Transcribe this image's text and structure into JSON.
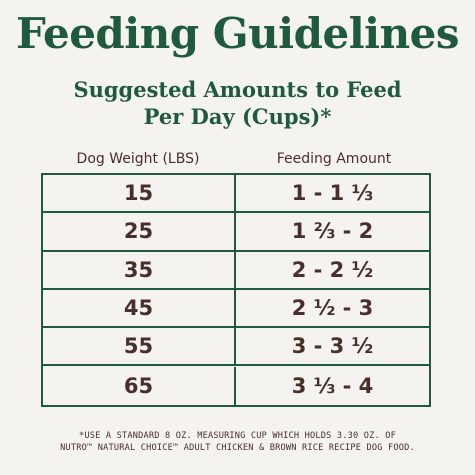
{
  "title": "Feeding Guidelines",
  "subtitle_line1": "Suggested Amounts to Feed",
  "subtitle_line2": "Per Day (Cups)*",
  "columns": {
    "weight": "Dog Weight (LBS)",
    "amount": "Feeding Amount"
  },
  "rows": [
    {
      "weight": "15",
      "amount": "1 - 1 ⅓"
    },
    {
      "weight": "25",
      "amount": "1 ⅔ - 2"
    },
    {
      "weight": "35",
      "amount": "2 - 2 ½"
    },
    {
      "weight": "45",
      "amount": "2 ½ - 3"
    },
    {
      "weight": "55",
      "amount": "3 - 3 ½"
    },
    {
      "weight": "65",
      "amount": "3 ⅓ - 4"
    }
  ],
  "footnote_line1": "*USE A STANDARD 8 OZ. MEASURING CUP WHICH HOLDS 3.30 OZ. OF",
  "footnote_line2": "NUTRO™ NATURAL CHOICE™ ADULT CHICKEN & BROWN RICE RECIPE DOG FOOD.",
  "colors": {
    "heading_green": "#1f5a3d",
    "text_brown": "#4a2e2c",
    "background": "#f4f3ef"
  }
}
